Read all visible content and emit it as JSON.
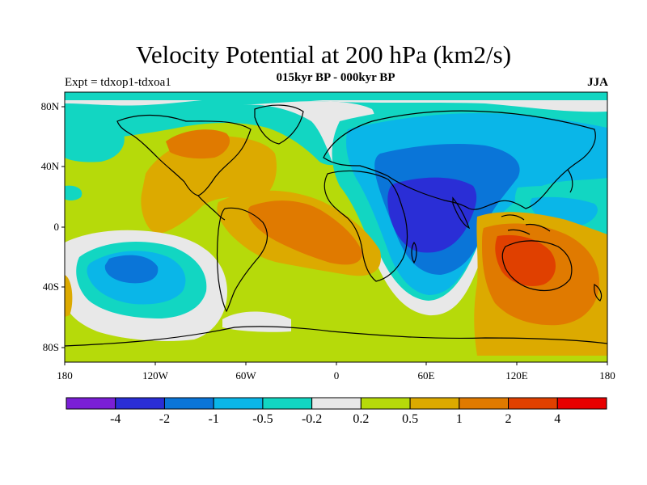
{
  "title": "Velocity Potential at 200 hPa (km2/s)",
  "subtitle": "015kyr BP - 000kyr BP",
  "left_label": "Expt = tdxop1-tdxoa1",
  "right_label": "JJA",
  "x_ticks": [
    "180",
    "120W",
    "60W",
    "0",
    "60E",
    "120E",
    "180"
  ],
  "y_ticks": [
    "80N",
    "40N",
    "0",
    "40S",
    "80S"
  ],
  "colorbar": {
    "colors": [
      "#7a1fd6",
      "#2a2ed6",
      "#0a75d8",
      "#0ab6e8",
      "#12d6c2",
      "#e8e8e8",
      "#b6da0a",
      "#dcaa00",
      "#e07a00",
      "#e04000",
      "#e80000"
    ],
    "labels": [
      "-4",
      "-2",
      "-1",
      "-0.5",
      "-0.2",
      "0.2",
      "0.5",
      "1",
      "2",
      "4"
    ]
  },
  "colors": {
    "land_outline": "#000000",
    "background_field": "#b6da0a"
  }
}
